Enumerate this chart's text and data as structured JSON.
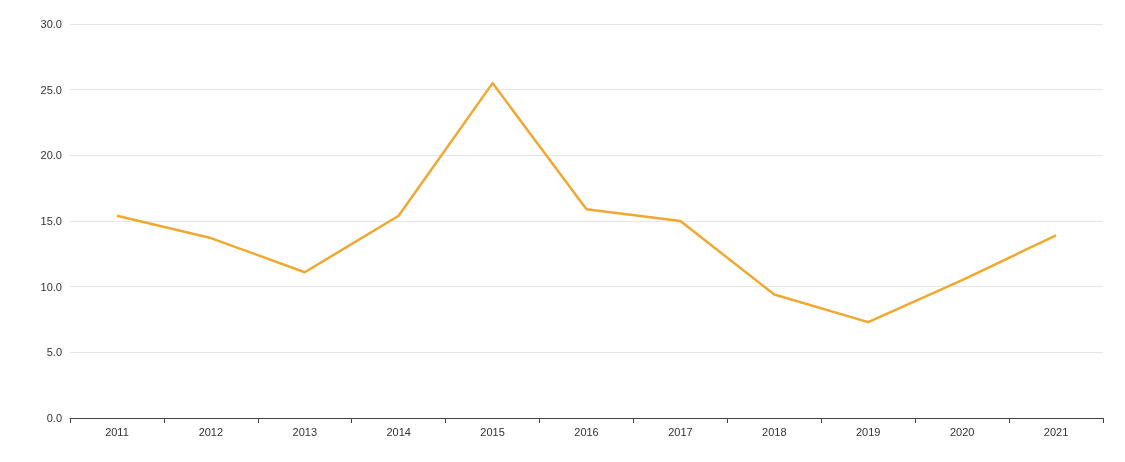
{
  "chart_data": {
    "type": "line",
    "categories": [
      "2011",
      "2012",
      "2013",
      "2014",
      "2015",
      "2016",
      "2017",
      "2018",
      "2019",
      "2020",
      "2021"
    ],
    "series": [
      {
        "color": "#f0a830",
        "values": [
          15.4,
          13.7,
          11.1,
          15.4,
          25.5,
          15.9,
          15.0,
          9.4,
          7.3,
          10.5,
          13.9
        ]
      }
    ],
    "ylim": [
      0,
      30
    ],
    "yticks": [
      {
        "value": 0,
        "label": "0.0"
      },
      {
        "value": 5,
        "label": "5.0"
      },
      {
        "value": 10,
        "label": "10.0"
      },
      {
        "value": 15,
        "label": "15.0"
      },
      {
        "value": 20,
        "label": "20.0"
      },
      {
        "value": 25,
        "label": "25.0"
      },
      {
        "value": 30,
        "label": "30.0"
      }
    ],
    "grid": "y",
    "marker": "none",
    "line_style": "solid"
  }
}
